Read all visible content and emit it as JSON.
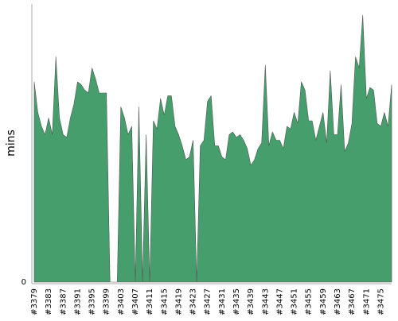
{
  "chart_data": {
    "type": "area",
    "y_label": "mins",
    "color": "#479e6d",
    "categories": [
      "#3379",
      null,
      null,
      null,
      "#3383",
      null,
      null,
      null,
      "#3387",
      null,
      null,
      null,
      "#3391",
      null,
      null,
      null,
      "#3395",
      null,
      null,
      null,
      "#3399",
      null,
      null,
      null,
      "#3403",
      null,
      null,
      null,
      "#3407",
      null,
      null,
      null,
      "#3411",
      null,
      null,
      null,
      "#3415",
      null,
      null,
      null,
      "#3419",
      null,
      null,
      null,
      "#3423",
      null,
      null,
      null,
      "#3427",
      null,
      null,
      null,
      "#3431",
      null,
      null,
      null,
      "#3435",
      null,
      null,
      null,
      "#3439",
      null,
      null,
      null,
      "#3443",
      null,
      null,
      null,
      "#3447",
      null,
      null,
      null,
      "#3451",
      null,
      null,
      null,
      "#3455",
      null,
      null,
      null,
      "#3459",
      null,
      null,
      null,
      "#3463",
      null,
      null,
      null,
      "#3467",
      null,
      null,
      null,
      "#3471",
      null,
      null,
      null,
      "#3475",
      null,
      null,
      null
    ],
    "values": [
      72,
      61,
      56,
      53,
      59,
      53,
      81,
      59,
      53,
      52,
      59,
      64,
      72,
      71,
      69,
      68,
      77,
      73,
      68,
      68,
      68,
      0,
      0,
      0,
      63,
      59,
      53,
      56,
      0,
      63,
      0,
      53,
      0,
      58,
      55,
      66,
      60,
      67,
      67,
      56,
      53,
      49,
      44,
      45,
      51,
      0,
      49,
      51,
      65,
      67,
      49,
      49,
      45,
      44,
      53,
      54,
      52,
      53,
      51,
      48,
      42,
      44,
      48,
      50,
      78,
      49,
      54,
      51,
      51,
      48,
      56,
      55,
      61,
      57,
      72,
      69,
      58,
      58,
      51,
      56,
      61,
      50,
      76,
      53,
      53,
      71,
      47,
      50,
      57,
      81,
      77,
      96,
      66,
      70,
      69,
      57,
      56,
      61,
      56,
      71
    ],
    "ylim": [
      0,
      100
    ],
    "yticks": [
      0
    ]
  }
}
